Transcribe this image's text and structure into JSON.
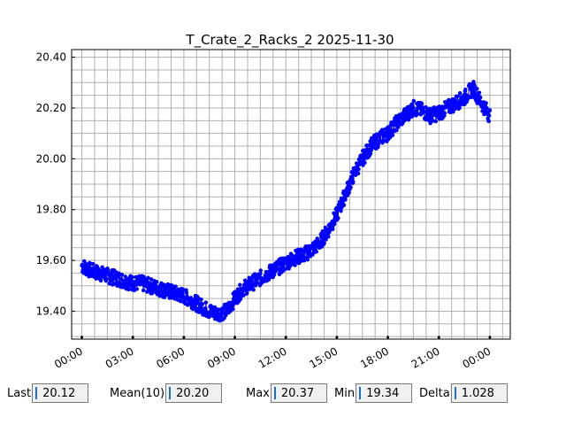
{
  "chart_data": {
    "type": "scatter",
    "title": "T_Crate_2_Racks_2 2025-11-30",
    "xlabel": "",
    "ylabel": "",
    "x_ticks": [
      "00:00",
      "03:00",
      "06:00",
      "09:00",
      "12:00",
      "15:00",
      "18:00",
      "21:00",
      "00:00"
    ],
    "y_ticks": [
      "19.40",
      "19.60",
      "19.80",
      "20.00",
      "20.20",
      "20.40"
    ],
    "xlim_hours": [
      -0.6,
      25.2
    ],
    "ylim": [
      19.29,
      20.43
    ],
    "grid": true,
    "marker_color": "#0000ff",
    "series": [
      {
        "x_hours": [
          0,
          0.5,
          1,
          1.5,
          2,
          2.5,
          3,
          3.5,
          4,
          4.5,
          5,
          5.5,
          6,
          6.5,
          7,
          7.5,
          8,
          8.5,
          9,
          9.5,
          10,
          10.5,
          11,
          11.5,
          12,
          12.5,
          13,
          13.5,
          14,
          14.5,
          15,
          15.5,
          16,
          16.5,
          17,
          17.5,
          18,
          18.5,
          19,
          19.5,
          20,
          20.5,
          21,
          21.5,
          22,
          22.5,
          23,
          23.5,
          24
        ],
        "y": [
          19.58,
          19.56,
          19.55,
          19.54,
          19.53,
          19.52,
          19.51,
          19.51,
          19.5,
          19.49,
          19.48,
          19.47,
          19.46,
          19.44,
          19.42,
          19.4,
          19.39,
          19.4,
          19.45,
          19.49,
          19.51,
          19.53,
          19.55,
          19.57,
          19.59,
          19.61,
          19.62,
          19.64,
          19.67,
          19.72,
          19.78,
          19.86,
          19.94,
          20.0,
          20.05,
          20.08,
          20.1,
          20.14,
          20.17,
          20.2,
          20.19,
          20.17,
          20.18,
          20.2,
          20.22,
          20.24,
          20.28,
          20.22,
          20.17
        ],
        "spread": 0.06
      }
    ]
  },
  "stats": {
    "last_label": "Last",
    "last_value": "20.12",
    "mean_label": "Mean(10)",
    "mean_value": "20.20",
    "max_label": "Max",
    "max_value": "20.37",
    "min_label": "Min",
    "min_value": "19.34",
    "delta_label": "Delta",
    "delta_value": "1.028"
  }
}
